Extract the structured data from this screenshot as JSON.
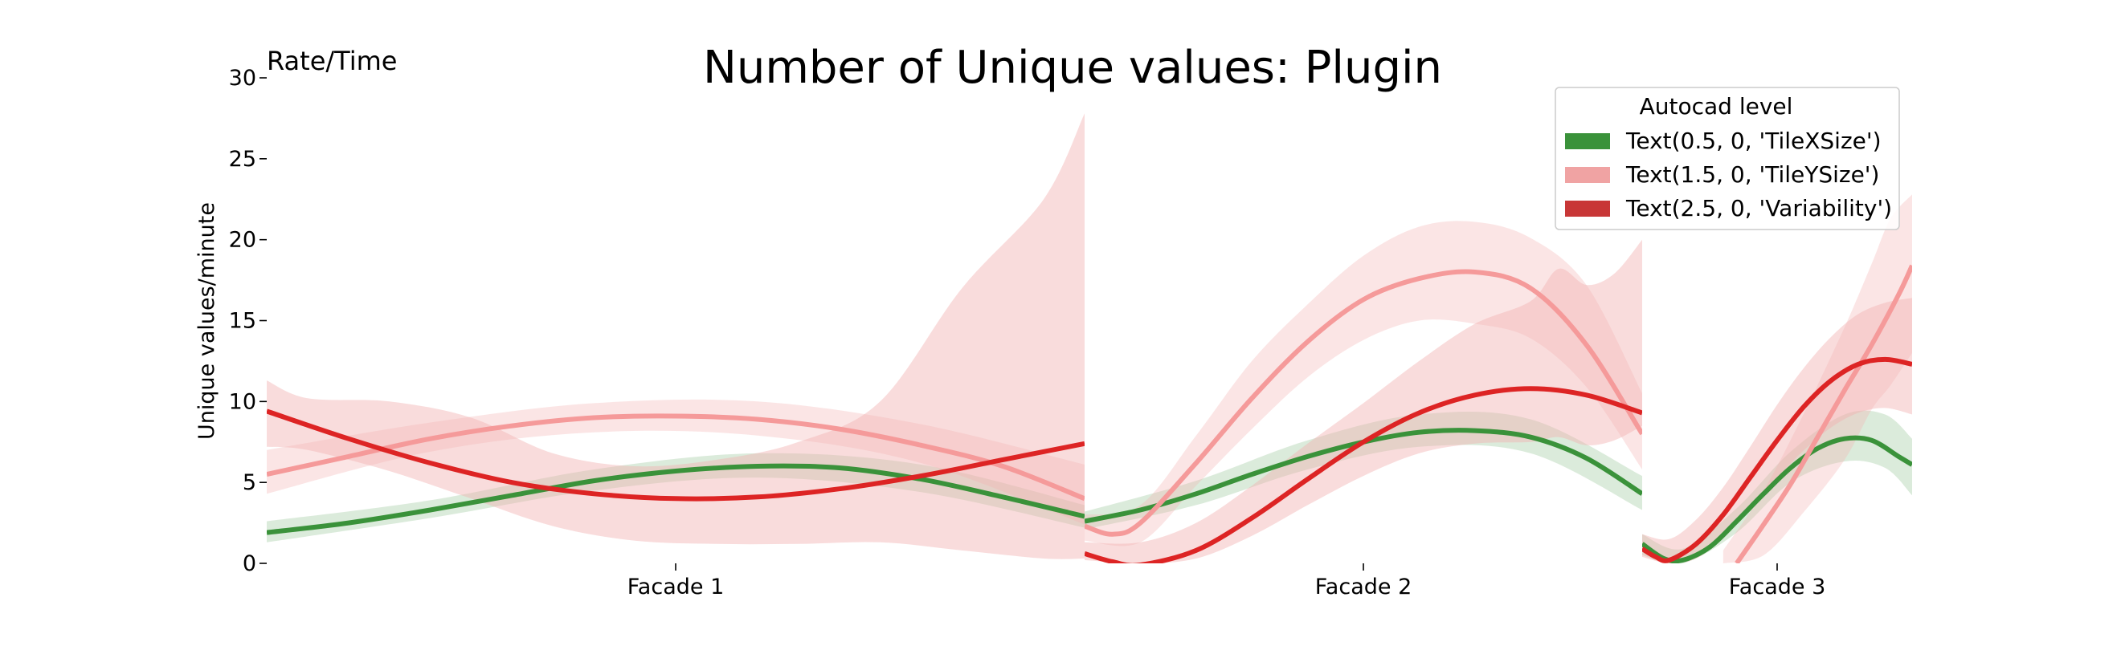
{
  "chart_data": {
    "type": "line",
    "title": "Number of Unique values: Plugin",
    "corner_text": "Rate/Time",
    "ylabel": "Unique values/minute",
    "xlabel": "",
    "ylim": [
      0,
      30
    ],
    "yticks": [
      0,
      5,
      10,
      15,
      20,
      25,
      30
    ],
    "grid": false,
    "legend": {
      "title": "Autocad level",
      "position": "top-right",
      "entries": [
        {
          "label": "Text(0.5, 0, 'TileXSize')",
          "color": "#3a923a"
        },
        {
          "label": "Text(1.5, 0, 'TileYSize')",
          "color": "#f0a3a3"
        },
        {
          "label": "Text(2.5, 0, 'Variability')",
          "color": "#c83737"
        }
      ]
    },
    "panels": [
      {
        "label": "Facade 1",
        "series": [
          {
            "name": "Text(0.5, 0, 'TileXSize')",
            "color": "#3a923a",
            "band_color": "#3a923a",
            "band_opacity": 0.18,
            "points": [
              [
                0,
                1.9
              ],
              [
                0.1,
                2.5
              ],
              [
                0.2,
                3.3
              ],
              [
                0.3,
                4.2
              ],
              [
                0.4,
                5.1
              ],
              [
                0.5,
                5.7
              ],
              [
                0.6,
                6.0
              ],
              [
                0.7,
                5.9
              ],
              [
                0.8,
                5.2
              ],
              [
                0.9,
                4.1
              ],
              [
                1.0,
                2.9
              ]
            ],
            "band": [
              [
                0,
                1.3,
                2.6
              ],
              [
                0.2,
                2.8,
                3.9
              ],
              [
                0.4,
                4.5,
                5.8
              ],
              [
                0.6,
                5.3,
                6.8
              ],
              [
                0.8,
                4.4,
                6.1
              ],
              [
                1.0,
                2.2,
                3.6
              ]
            ]
          },
          {
            "name": "Text(1.5, 0, 'TileYSize')",
            "color": "#f59a9a",
            "band_color": "#f4b5b5",
            "band_opacity": 0.35,
            "points": [
              [
                0,
                5.5
              ],
              [
                0.1,
                6.6
              ],
              [
                0.2,
                7.7
              ],
              [
                0.3,
                8.5
              ],
              [
                0.4,
                9.0
              ],
              [
                0.5,
                9.1
              ],
              [
                0.6,
                8.9
              ],
              [
                0.7,
                8.3
              ],
              [
                0.8,
                7.3
              ],
              [
                0.9,
                6.0
              ],
              [
                1.0,
                4.0
              ]
            ],
            "band": [
              [
                0,
                4.3,
                7.0
              ],
              [
                0.2,
                6.9,
                8.7
              ],
              [
                0.4,
                8.1,
                9.9
              ],
              [
                0.6,
                7.9,
                10.0
              ],
              [
                0.8,
                6.2,
                8.6
              ],
              [
                1.0,
                2.4,
                6.1
              ]
            ]
          },
          {
            "name": "Text(2.5, 0, 'Variability')",
            "color": "#dd2424",
            "band_color": "#f2b2b2",
            "band_opacity": 0.45,
            "points": [
              [
                0,
                9.4
              ],
              [
                0.1,
                7.7
              ],
              [
                0.2,
                6.2
              ],
              [
                0.3,
                5.0
              ],
              [
                0.4,
                4.3
              ],
              [
                0.5,
                4.0
              ],
              [
                0.6,
                4.1
              ],
              [
                0.7,
                4.6
              ],
              [
                0.8,
                5.4
              ],
              [
                0.9,
                6.4
              ],
              [
                1.0,
                7.4
              ]
            ],
            "band": [
              [
                0,
                7.2,
                11.3
              ],
              [
                0.05,
                7.0,
                10.2
              ],
              [
                0.15,
                5.7,
                10.0
              ],
              [
                0.25,
                4.0,
                9.0
              ],
              [
                0.35,
                2.3,
                6.8
              ],
              [
                0.45,
                1.4,
                6.0
              ],
              [
                0.55,
                1.2,
                6.4
              ],
              [
                0.65,
                1.2,
                7.5
              ],
              [
                0.75,
                1.3,
                10.0
              ],
              [
                0.85,
                0.8,
                17.0
              ],
              [
                0.95,
                0.3,
                22.5
              ],
              [
                1.0,
                0.3,
                27.8
              ]
            ]
          }
        ]
      },
      {
        "label": "Facade 2",
        "series": [
          {
            "name": "Text(0.5, 0, 'TileXSize')",
            "color": "#3a923a",
            "band_color": "#3a923a",
            "band_opacity": 0.18,
            "points": [
              [
                0,
                2.6
              ],
              [
                0.1,
                3.3
              ],
              [
                0.2,
                4.3
              ],
              [
                0.3,
                5.5
              ],
              [
                0.4,
                6.6
              ],
              [
                0.5,
                7.5
              ],
              [
                0.6,
                8.1
              ],
              [
                0.7,
                8.2
              ],
              [
                0.8,
                7.8
              ],
              [
                0.9,
                6.5
              ],
              [
                1.0,
                4.3
              ]
            ],
            "band": [
              [
                0,
                2.1,
                3.2
              ],
              [
                0.2,
                3.6,
                5.1
              ],
              [
                0.4,
                5.8,
                7.6
              ],
              [
                0.6,
                7.2,
                9.2
              ],
              [
                0.8,
                6.8,
                8.9
              ],
              [
                1.0,
                3.3,
                5.4
              ]
            ]
          },
          {
            "name": "Text(1.5, 0, 'TileYSize')",
            "color": "#f59a9a",
            "band_color": "#f4b5b5",
            "band_opacity": 0.35,
            "points": [
              [
                0,
                2.3
              ],
              [
                0.05,
                1.8
              ],
              [
                0.1,
                2.5
              ],
              [
                0.2,
                6.2
              ],
              [
                0.3,
                10.2
              ],
              [
                0.4,
                13.7
              ],
              [
                0.5,
                16.3
              ],
              [
                0.6,
                17.6
              ],
              [
                0.7,
                18.0
              ],
              [
                0.8,
                17.0
              ],
              [
                0.9,
                13.5
              ],
              [
                1.0,
                8.0
              ]
            ],
            "band": [
              [
                0,
                1.4,
                3.0
              ],
              [
                0.1,
                1.3,
                3.6
              ],
              [
                0.2,
                4.8,
                7.9
              ],
              [
                0.3,
                8.3,
                12.5
              ],
              [
                0.4,
                11.5,
                16.0
              ],
              [
                0.5,
                13.8,
                19.0
              ],
              [
                0.6,
                15.0,
                20.8
              ],
              [
                0.7,
                14.8,
                21.1
              ],
              [
                0.8,
                13.9,
                20.1
              ],
              [
                0.9,
                10.9,
                17.2
              ],
              [
                1.0,
                5.8,
                10.5
              ]
            ]
          },
          {
            "name": "Text(2.5, 0, 'Variability')",
            "color": "#dd2424",
            "band_color": "#f2b2b2",
            "band_opacity": 0.45,
            "points": [
              [
                0,
                0.6
              ],
              [
                0.05,
                0.1
              ],
              [
                0.1,
                -0.1
              ],
              [
                0.2,
                0.8
              ],
              [
                0.3,
                2.8
              ],
              [
                0.4,
                5.2
              ],
              [
                0.5,
                7.5
              ],
              [
                0.6,
                9.3
              ],
              [
                0.7,
                10.4
              ],
              [
                0.8,
                10.8
              ],
              [
                0.9,
                10.4
              ],
              [
                1.0,
                9.3
              ]
            ],
            "band": [
              [
                0,
                0.2,
                1.3
              ],
              [
                0.1,
                0.0,
                1.3
              ],
              [
                0.2,
                0.3,
                2.5
              ],
              [
                0.3,
                1.7,
                4.8
              ],
              [
                0.4,
                3.6,
                7.4
              ],
              [
                0.5,
                5.4,
                9.9
              ],
              [
                0.6,
                6.8,
                12.5
              ],
              [
                0.7,
                7.4,
                14.8
              ],
              [
                0.8,
                7.5,
                16.2
              ],
              [
                0.85,
                7.8,
                18.2
              ],
              [
                0.9,
                7.3,
                17.2
              ],
              [
                0.95,
                7.6,
                17.9
              ],
              [
                1.0,
                8.5,
                20.0
              ]
            ]
          }
        ]
      },
      {
        "label": "Facade 3",
        "series": [
          {
            "name": "Text(0.5, 0, 'TileXSize')",
            "color": "#3a923a",
            "band_color": "#3a923a",
            "band_opacity": 0.18,
            "points": [
              [
                0,
                1.2
              ],
              [
                0.08,
                0.3
              ],
              [
                0.15,
                0.2
              ],
              [
                0.25,
                1.0
              ],
              [
                0.35,
                2.6
              ],
              [
                0.45,
                4.3
              ],
              [
                0.55,
                5.9
              ],
              [
                0.65,
                7.1
              ],
              [
                0.75,
                7.7
              ],
              [
                0.85,
                7.6
              ],
              [
                0.95,
                6.6
              ],
              [
                1.0,
                6.1
              ]
            ],
            "band": [
              [
                0,
                0.5,
                1.8
              ],
              [
                0.15,
                0.0,
                0.9
              ],
              [
                0.35,
                1.9,
                3.4
              ],
              [
                0.55,
                5.0,
                6.9
              ],
              [
                0.75,
                6.3,
                9.2
              ],
              [
                0.9,
                5.9,
                9.2
              ],
              [
                1.0,
                4.2,
                7.7
              ]
            ]
          },
          {
            "name": "Text(1.5, 0, 'TileYSize')",
            "color": "#f59a9a",
            "band_color": "#f4b5b5",
            "band_opacity": 0.35,
            "points": [
              [
                0.35,
                0
              ],
              [
                0.45,
                2.4
              ],
              [
                0.55,
                4.9
              ],
              [
                0.65,
                7.8
              ],
              [
                0.75,
                10.7
              ],
              [
                0.85,
                13.5
              ],
              [
                0.95,
                16.6
              ],
              [
                1.0,
                18.4
              ]
            ],
            "band": [
              [
                0.3,
                0,
                0.8
              ],
              [
                0.45,
                0.5,
                4.5
              ],
              [
                0.6,
                3.2,
                9.3
              ],
              [
                0.75,
                6.4,
                14.6
              ],
              [
                0.85,
                9.5,
                18.5
              ],
              [
                0.92,
                11.0,
                21.3
              ],
              [
                1.0,
                13.0,
                22.8
              ]
            ]
          },
          {
            "name": "Text(2.5, 0, 'Variability')",
            "color": "#dd2424",
            "band_color": "#f2b2b2",
            "band_opacity": 0.45,
            "points": [
              [
                0,
                0.9
              ],
              [
                0.05,
                0.4
              ],
              [
                0.1,
                0.2
              ],
              [
                0.2,
                1.2
              ],
              [
                0.3,
                3.0
              ],
              [
                0.4,
                5.3
              ],
              [
                0.5,
                7.6
              ],
              [
                0.6,
                9.7
              ],
              [
                0.7,
                11.3
              ],
              [
                0.8,
                12.3
              ],
              [
                0.9,
                12.6
              ],
              [
                1.0,
                12.3
              ]
            ],
            "band": [
              [
                0,
                0.4,
                1.8
              ],
              [
                0.1,
                0.0,
                1.5
              ],
              [
                0.2,
                0.3,
                2.7
              ],
              [
                0.3,
                1.6,
                4.7
              ],
              [
                0.4,
                3.6,
                7.2
              ],
              [
                0.5,
                5.3,
                9.8
              ],
              [
                0.6,
                7.0,
                12.1
              ],
              [
                0.7,
                8.4,
                14.0
              ],
              [
                0.8,
                9.3,
                15.4
              ],
              [
                0.9,
                9.6,
                16.1
              ],
              [
                1.0,
                9.2,
                16.4
              ]
            ]
          }
        ]
      }
    ]
  }
}
